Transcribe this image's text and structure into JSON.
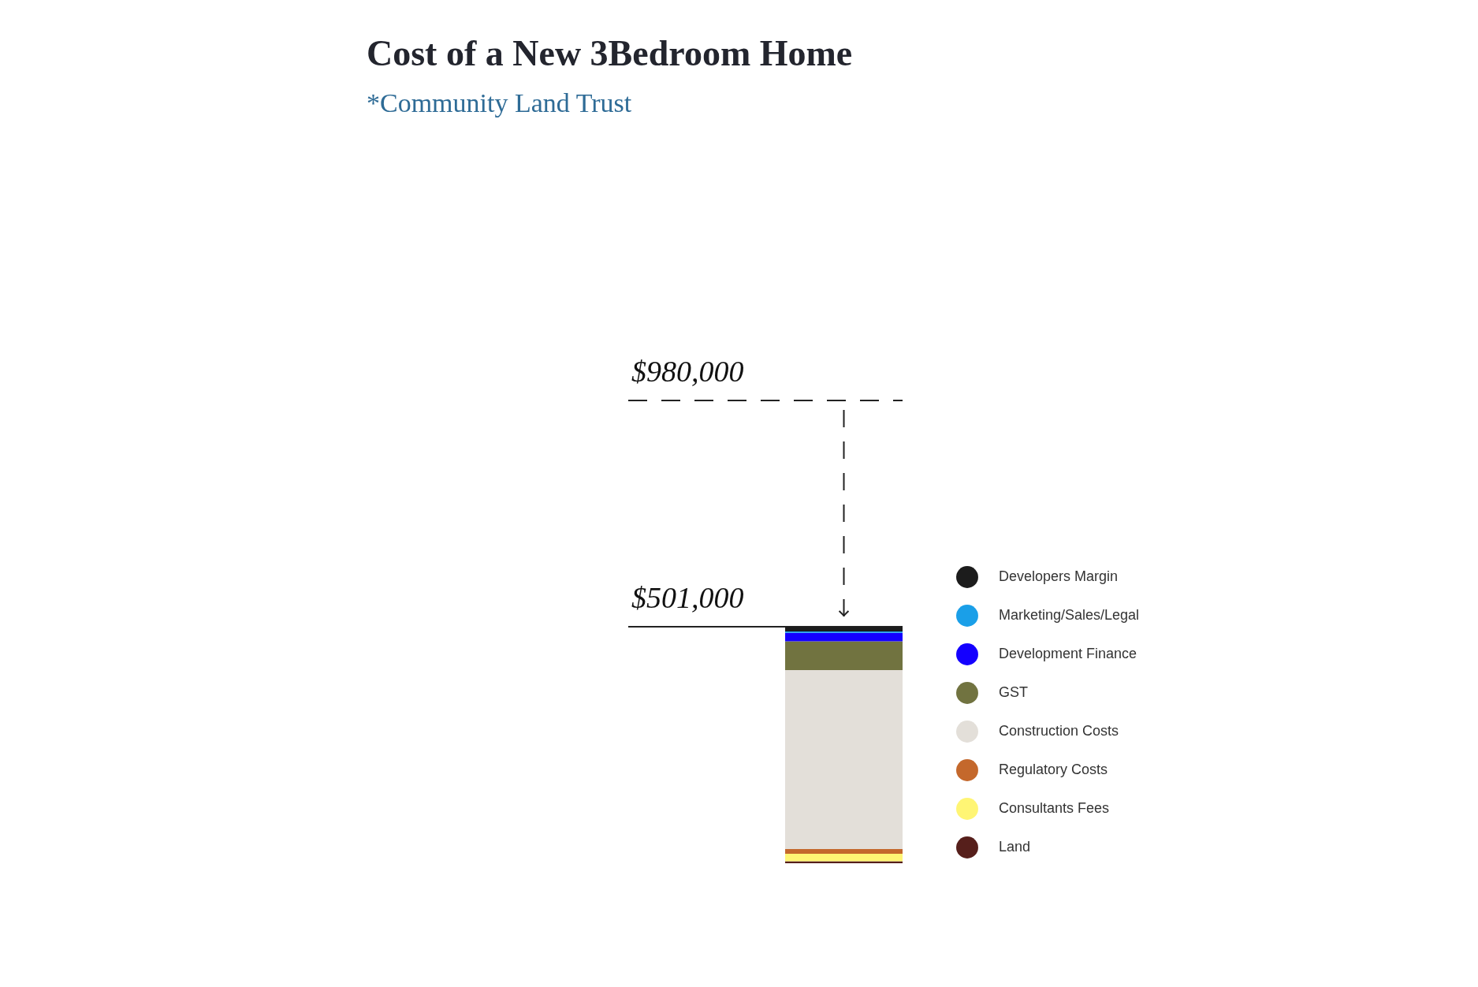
{
  "chart_data": {
    "type": "bar",
    "title": "Cost of a New 3Bedroom Home",
    "subtitle": "*Community Land Trust",
    "categories": [
      null
    ],
    "stacked": true,
    "ylim": [
      0,
      980000
    ],
    "tick_labels": false,
    "legend": "right",
    "series": [
      {
        "name": "Land",
        "color": "#561f1b",
        "values": [
          4000
        ]
      },
      {
        "name": "Consultants Fees",
        "color": "#fff574",
        "values": [
          16000
        ]
      },
      {
        "name": "Regulatory Costs",
        "color": "#c4682c",
        "values": [
          10000
        ]
      },
      {
        "name": "Construction Costs",
        "color": "#e3dfd9",
        "values": [
          379000
        ]
      },
      {
        "name": "GST",
        "color": "#717340",
        "values": [
          61000
        ]
      },
      {
        "name": "Development Finance",
        "color": "#1400ff",
        "values": [
          18000
        ]
      },
      {
        "name": "Marketing/Sales/Legal",
        "color": "#1a9fe8",
        "values": [
          3000
        ]
      },
      {
        "name": "Developers Margin",
        "color": "#1c1c1c",
        "values": [
          10000
        ]
      }
    ],
    "ref_lines": [
      {
        "axis": "y",
        "value": 980000,
        "label": "$980,000",
        "line_style": "dashed"
      },
      {
        "axis": "y",
        "value": 501000,
        "label": "$501,000",
        "line_style": "solid"
      }
    ]
  }
}
